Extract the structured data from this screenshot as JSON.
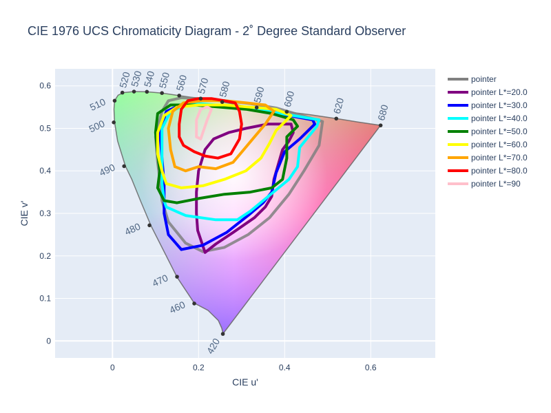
{
  "chart_data": {
    "type": "line",
    "title": "CIE 1976 UCS Chromaticity Diagram - 2˚ Degree Standard Observer",
    "xlabel": "CIE u'",
    "ylabel": "CIE v'",
    "xlim": [
      -0.1333,
      0.75
    ],
    "ylim": [
      -0.04,
      0.64
    ],
    "xticks": [
      0,
      0.2,
      0.4,
      0.6
    ],
    "yticks": [
      0,
      0.1,
      0.2,
      0.3,
      0.4,
      0.5,
      0.6
    ],
    "grid": true,
    "legend_position": "top-right",
    "spectral_locus": {
      "points": [
        [
          0.2565,
          0.0165
        ],
        [
          0.256,
          0.021
        ],
        [
          0.254,
          0.03
        ],
        [
          0.246,
          0.048
        ],
        [
          0.222,
          0.072
        ],
        [
          0.19,
          0.089
        ],
        [
          0.15,
          0.15
        ],
        [
          0.12,
          0.21
        ],
        [
          0.09,
          0.27
        ],
        [
          0.065,
          0.33
        ],
        [
          0.045,
          0.38
        ],
        [
          0.03,
          0.411
        ],
        [
          0.012,
          0.47
        ],
        [
          0.005,
          0.514
        ],
        [
          0.0035,
          0.545
        ],
        [
          0.005,
          0.565
        ],
        [
          0.013,
          0.578
        ],
        [
          0.025,
          0.584
        ],
        [
          0.05,
          0.5865
        ],
        [
          0.08,
          0.586
        ],
        [
          0.115,
          0.583
        ],
        [
          0.155,
          0.577
        ],
        [
          0.205,
          0.57
        ],
        [
          0.255,
          0.562
        ],
        [
          0.305,
          0.553
        ],
        [
          0.355,
          0.545
        ],
        [
          0.405,
          0.539
        ],
        [
          0.46,
          0.532
        ],
        [
          0.52,
          0.523
        ],
        [
          0.57,
          0.515
        ],
        [
          0.623,
          0.507
        ]
      ],
      "markers": [
        {
          "label": "420",
          "u": 0.2565,
          "v": 0.0165
        },
        {
          "label": "460",
          "u": 0.19,
          "v": 0.088
        },
        {
          "label": "470",
          "u": 0.15,
          "v": 0.151
        },
        {
          "label": "480",
          "u": 0.086,
          "v": 0.272
        },
        {
          "label": "490",
          "u": 0.027,
          "v": 0.411
        },
        {
          "label": "500",
          "u": 0.003,
          "v": 0.514
        },
        {
          "label": "510",
          "u": 0.005,
          "v": 0.565
        },
        {
          "label": "520",
          "u": 0.023,
          "v": 0.584
        },
        {
          "label": "530",
          "u": 0.05,
          "v": 0.5865
        },
        {
          "label": "540",
          "u": 0.08,
          "v": 0.586
        },
        {
          "label": "550",
          "u": 0.115,
          "v": 0.583
        },
        {
          "label": "560",
          "u": 0.155,
          "v": 0.577
        },
        {
          "label": "570",
          "u": 0.205,
          "v": 0.57
        },
        {
          "label": "580",
          "u": 0.255,
          "v": 0.562
        },
        {
          "label": "590",
          "u": 0.335,
          "v": 0.549
        },
        {
          "label": "600",
          "u": 0.405,
          "v": 0.539
        },
        {
          "label": "620",
          "u": 0.52,
          "v": 0.523
        },
        {
          "label": "680",
          "u": 0.623,
          "v": 0.507
        }
      ]
    },
    "series": [
      {
        "name": "pointer",
        "color": "#808080",
        "width": 4,
        "points": [
          [
            0.21,
            0.21
          ],
          [
            0.26,
            0.22
          ],
          [
            0.315,
            0.25
          ],
          [
            0.365,
            0.29
          ],
          [
            0.41,
            0.345
          ],
          [
            0.445,
            0.4
          ],
          [
            0.48,
            0.46
          ],
          [
            0.488,
            0.516
          ],
          [
            0.44,
            0.53
          ],
          [
            0.38,
            0.548
          ],
          [
            0.32,
            0.558
          ],
          [
            0.26,
            0.565
          ],
          [
            0.2,
            0.57
          ],
          [
            0.16,
            0.572
          ],
          [
            0.13,
            0.565
          ],
          [
            0.115,
            0.54
          ],
          [
            0.1,
            0.48
          ],
          [
            0.105,
            0.42
          ],
          [
            0.11,
            0.38
          ],
          [
            0.115,
            0.33
          ],
          [
            0.13,
            0.28
          ],
          [
            0.17,
            0.23
          ],
          [
            0.21,
            0.21
          ]
        ]
      },
      {
        "name": "pointer L*=20.0",
        "color": "#800080",
        "width": 4,
        "points": [
          [
            0.215,
            0.208
          ],
          [
            0.24,
            0.228
          ],
          [
            0.28,
            0.255
          ],
          [
            0.33,
            0.29
          ],
          [
            0.355,
            0.315
          ],
          [
            0.37,
            0.34
          ],
          [
            0.375,
            0.38
          ],
          [
            0.395,
            0.45
          ],
          [
            0.41,
            0.47
          ],
          [
            0.42,
            0.49
          ],
          [
            0.415,
            0.51
          ],
          [
            0.36,
            0.51
          ],
          [
            0.31,
            0.5
          ],
          [
            0.27,
            0.49
          ],
          [
            0.235,
            0.475
          ],
          [
            0.215,
            0.45
          ],
          [
            0.2,
            0.4
          ],
          [
            0.195,
            0.35
          ],
          [
            0.195,
            0.3
          ],
          [
            0.198,
            0.26
          ],
          [
            0.215,
            0.208
          ]
        ]
      },
      {
        "name": "pointer L*=30.0",
        "color": "#0000ff",
        "width": 4,
        "points": [
          [
            0.16,
            0.215
          ],
          [
            0.21,
            0.225
          ],
          [
            0.265,
            0.255
          ],
          [
            0.315,
            0.295
          ],
          [
            0.35,
            0.325
          ],
          [
            0.37,
            0.35
          ],
          [
            0.38,
            0.395
          ],
          [
            0.4,
            0.445
          ],
          [
            0.435,
            0.475
          ],
          [
            0.47,
            0.51
          ],
          [
            0.465,
            0.52
          ],
          [
            0.41,
            0.53
          ],
          [
            0.35,
            0.54
          ],
          [
            0.29,
            0.55
          ],
          [
            0.23,
            0.555
          ],
          [
            0.17,
            0.56
          ],
          [
            0.125,
            0.54
          ],
          [
            0.11,
            0.49
          ],
          [
            0.115,
            0.43
          ],
          [
            0.12,
            0.37
          ],
          [
            0.12,
            0.3
          ],
          [
            0.13,
            0.25
          ],
          [
            0.16,
            0.215
          ]
        ]
      },
      {
        "name": "pointer L*=40.0",
        "color": "#00ffff",
        "width": 4,
        "points": [
          [
            0.125,
            0.315
          ],
          [
            0.17,
            0.295
          ],
          [
            0.24,
            0.285
          ],
          [
            0.29,
            0.285
          ],
          [
            0.32,
            0.305
          ],
          [
            0.35,
            0.33
          ],
          [
            0.38,
            0.355
          ],
          [
            0.41,
            0.38
          ],
          [
            0.43,
            0.41
          ],
          [
            0.435,
            0.455
          ],
          [
            0.475,
            0.505
          ],
          [
            0.48,
            0.52
          ],
          [
            0.42,
            0.53
          ],
          [
            0.36,
            0.54
          ],
          [
            0.3,
            0.55
          ],
          [
            0.24,
            0.555
          ],
          [
            0.18,
            0.56
          ],
          [
            0.135,
            0.54
          ],
          [
            0.115,
            0.5
          ],
          [
            0.115,
            0.43
          ],
          [
            0.115,
            0.37
          ],
          [
            0.12,
            0.33
          ],
          [
            0.125,
            0.315
          ]
        ]
      },
      {
        "name": "pointer L*=50.0",
        "color": "#008000",
        "width": 4,
        "points": [
          [
            0.105,
            0.36
          ],
          [
            0.12,
            0.33
          ],
          [
            0.15,
            0.325
          ],
          [
            0.2,
            0.335
          ],
          [
            0.26,
            0.345
          ],
          [
            0.32,
            0.35
          ],
          [
            0.37,
            0.36
          ],
          [
            0.395,
            0.38
          ],
          [
            0.405,
            0.43
          ],
          [
            0.405,
            0.48
          ],
          [
            0.43,
            0.505
          ],
          [
            0.42,
            0.52
          ],
          [
            0.37,
            0.535
          ],
          [
            0.31,
            0.545
          ],
          [
            0.25,
            0.55
          ],
          [
            0.19,
            0.555
          ],
          [
            0.135,
            0.555
          ],
          [
            0.105,
            0.535
          ],
          [
            0.1,
            0.49
          ],
          [
            0.105,
            0.44
          ],
          [
            0.11,
            0.4
          ],
          [
            0.105,
            0.36
          ]
        ]
      },
      {
        "name": "pointer L*=60.0",
        "color": "#ffff00",
        "width": 4,
        "points": [
          [
            0.125,
            0.37
          ],
          [
            0.16,
            0.36
          ],
          [
            0.21,
            0.365
          ],
          [
            0.26,
            0.38
          ],
          [
            0.31,
            0.4
          ],
          [
            0.345,
            0.43
          ],
          [
            0.365,
            0.465
          ],
          [
            0.38,
            0.495
          ],
          [
            0.4,
            0.515
          ],
          [
            0.415,
            0.53
          ],
          [
            0.38,
            0.545
          ],
          [
            0.32,
            0.55
          ],
          [
            0.26,
            0.555
          ],
          [
            0.2,
            0.555
          ],
          [
            0.15,
            0.55
          ],
          [
            0.12,
            0.53
          ],
          [
            0.105,
            0.49
          ],
          [
            0.105,
            0.44
          ],
          [
            0.115,
            0.4
          ],
          [
            0.125,
            0.37
          ]
        ]
      },
      {
        "name": "pointer L*=70.0",
        "color": "#ffa500",
        "width": 4,
        "points": [
          [
            0.145,
            0.41
          ],
          [
            0.17,
            0.4
          ],
          [
            0.2,
            0.41
          ],
          [
            0.24,
            0.405
          ],
          [
            0.28,
            0.42
          ],
          [
            0.305,
            0.45
          ],
          [
            0.33,
            0.48
          ],
          [
            0.355,
            0.51
          ],
          [
            0.375,
            0.54
          ],
          [
            0.355,
            0.555
          ],
          [
            0.31,
            0.56
          ],
          [
            0.26,
            0.565
          ],
          [
            0.21,
            0.565
          ],
          [
            0.165,
            0.56
          ],
          [
            0.14,
            0.54
          ],
          [
            0.13,
            0.5
          ],
          [
            0.135,
            0.45
          ],
          [
            0.145,
            0.41
          ]
        ]
      },
      {
        "name": "pointer L*=80.0",
        "color": "#ff0000",
        "width": 4,
        "points": [
          [
            0.155,
            0.48
          ],
          [
            0.165,
            0.46
          ],
          [
            0.19,
            0.445
          ],
          [
            0.215,
            0.435
          ],
          [
            0.245,
            0.43
          ],
          [
            0.275,
            0.44
          ],
          [
            0.295,
            0.475
          ],
          [
            0.3,
            0.51
          ],
          [
            0.295,
            0.54
          ],
          [
            0.285,
            0.56
          ],
          [
            0.26,
            0.565
          ],
          [
            0.23,
            0.57
          ],
          [
            0.2,
            0.57
          ],
          [
            0.175,
            0.565
          ],
          [
            0.16,
            0.545
          ],
          [
            0.155,
            0.51
          ],
          [
            0.155,
            0.48
          ]
        ]
      },
      {
        "name": "pointer L*=90",
        "color": "#ffc0cb",
        "width": 4,
        "points": [
          [
            0.195,
            0.48
          ],
          [
            0.205,
            0.475
          ],
          [
            0.21,
            0.49
          ],
          [
            0.22,
            0.52
          ],
          [
            0.23,
            0.545
          ],
          [
            0.22,
            0.55
          ],
          [
            0.205,
            0.545
          ],
          [
            0.195,
            0.52
          ],
          [
            0.195,
            0.48
          ]
        ]
      }
    ]
  }
}
